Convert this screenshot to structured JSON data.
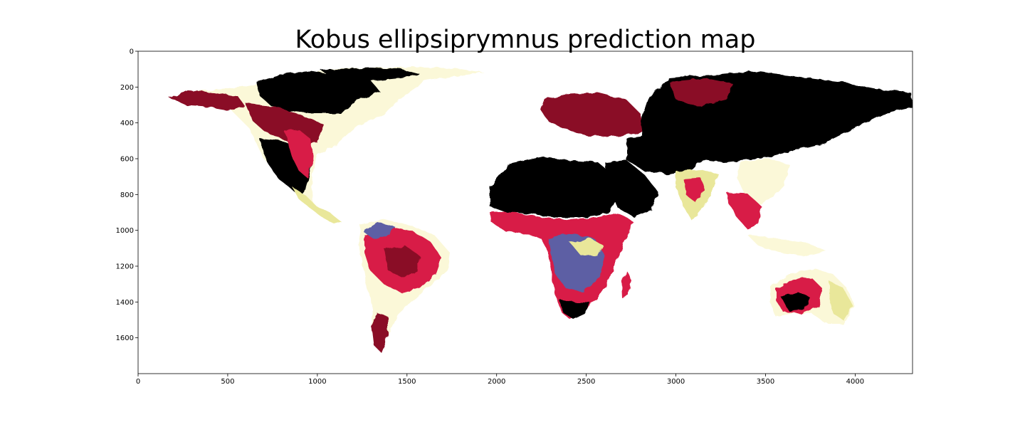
{
  "title": "Kobus ellipsiprymnus prediction map",
  "colors": {
    "background": "#ffffff",
    "high": "#000000",
    "high_mid": "#8a0c25",
    "mid": "#d81c46",
    "low_mid": "#5d5fa4",
    "low": "#e9e79a",
    "very_low": "#fbf8d8"
  },
  "chart_data": {
    "type": "heatmap",
    "title": "Kobus ellipsiprymnus prediction map",
    "xlabel": "",
    "ylabel": "",
    "xlim": [
      0,
      4320
    ],
    "ylim": [
      1800,
      0
    ],
    "y_inverted": true,
    "x_ticks": [
      0,
      500,
      1000,
      1500,
      2000,
      2500,
      3000,
      3500,
      4000
    ],
    "x_tick_labels": [
      "0",
      "500",
      "1000",
      "1500",
      "2000",
      "2500",
      "3000",
      "3500",
      "4000"
    ],
    "y_ticks": [
      0,
      200,
      400,
      600,
      800,
      1000,
      1200,
      1400,
      1600
    ],
    "y_tick_labels": [
      "0",
      "200",
      "400",
      "600",
      "800",
      "1000",
      "1200",
      "1400",
      "1600"
    ],
    "grid": false,
    "legend": "none"
  }
}
